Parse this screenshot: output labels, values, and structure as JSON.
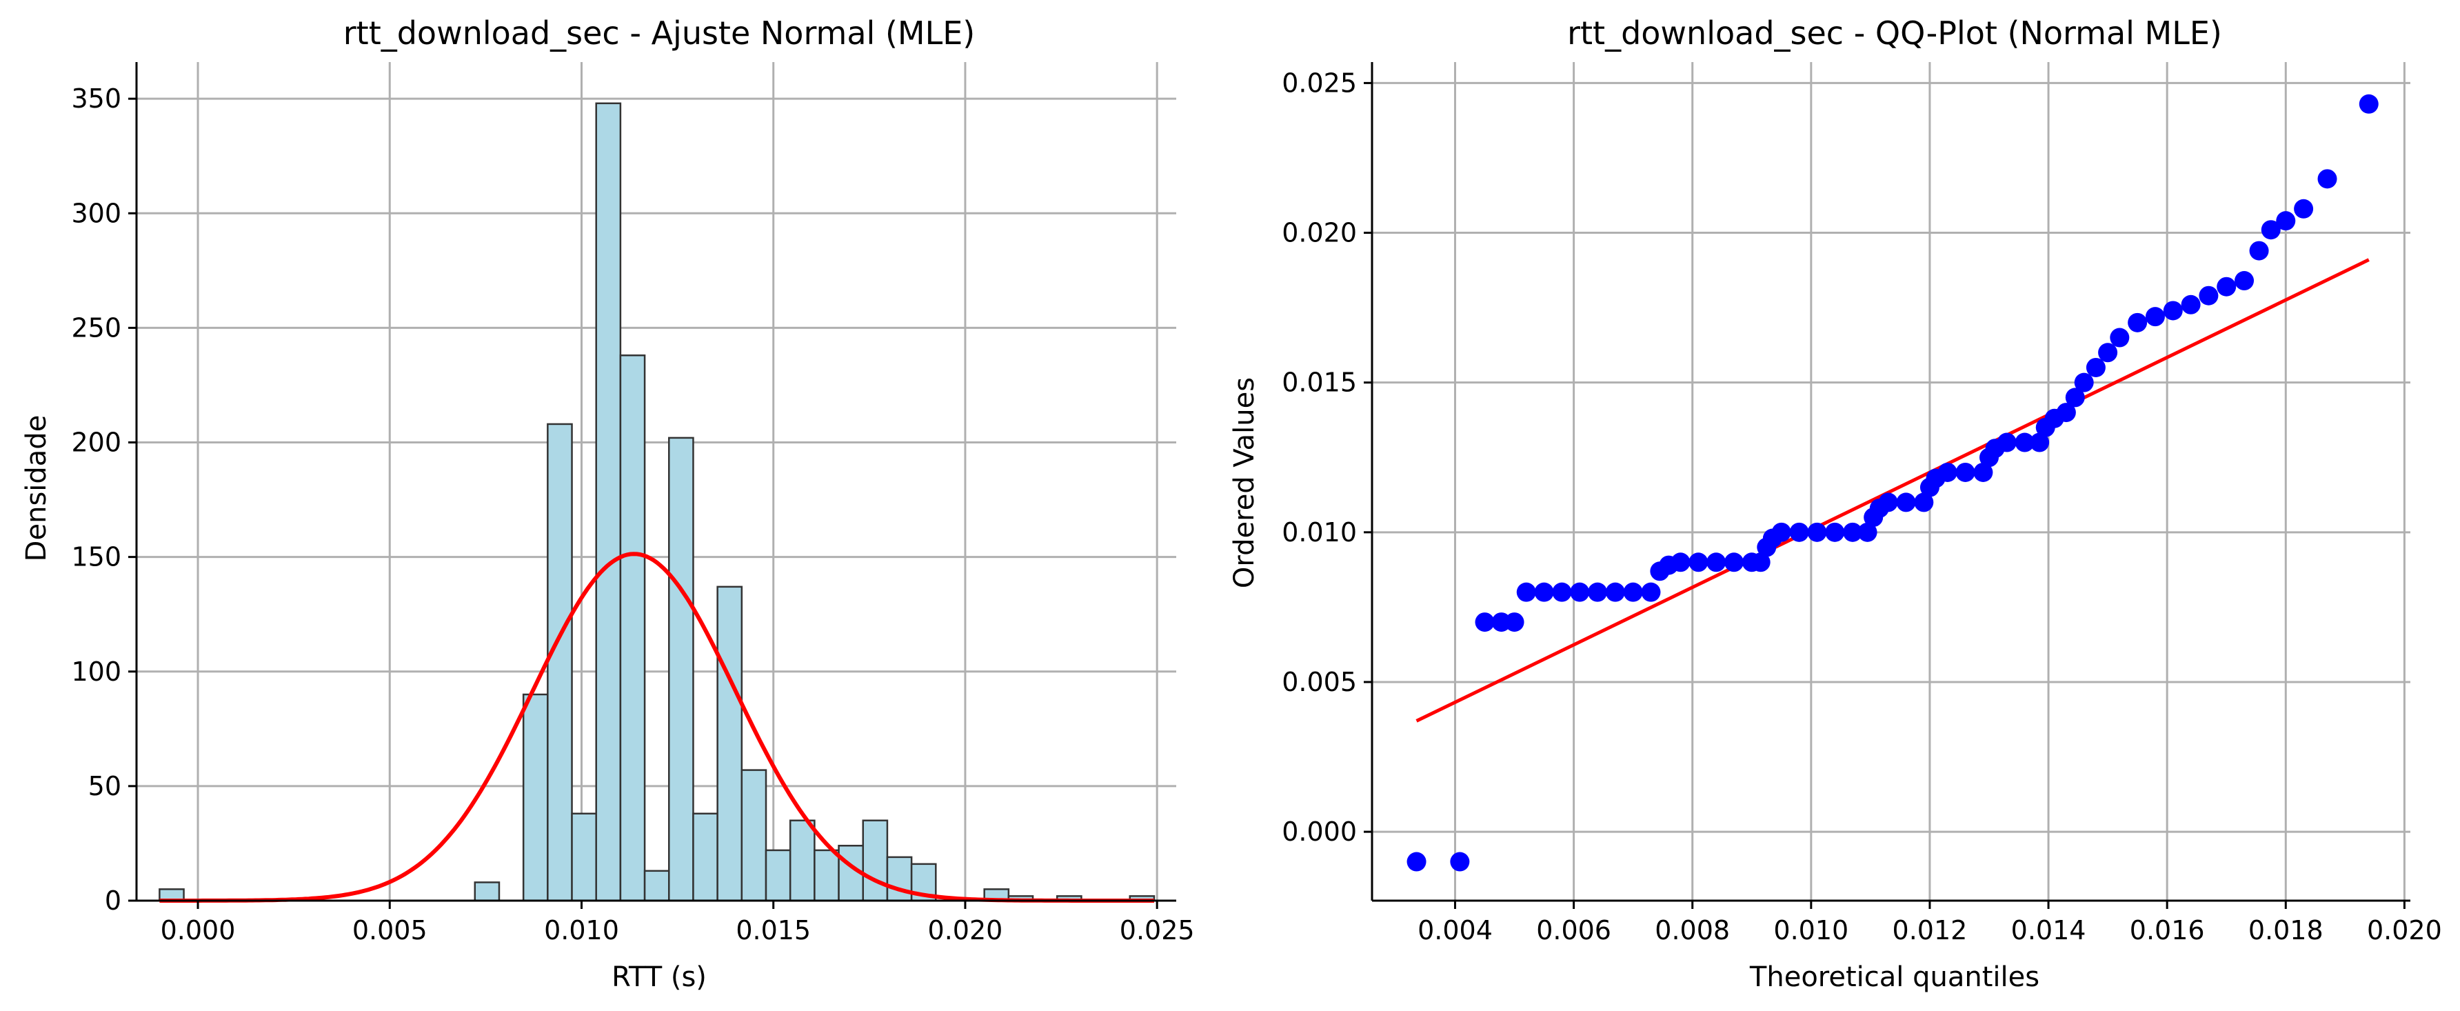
{
  "chart_data": [
    {
      "type": "bar",
      "subtype": "histogram_with_fit",
      "title": "rtt_download_sec - Ajuste Normal (MLE)",
      "xlabel": "RTT (s)",
      "ylabel": "Densidade",
      "xlim": [
        -0.0016,
        0.0255
      ],
      "ylim": [
        0,
        366
      ],
      "xticks": [
        0.0,
        0.005,
        0.01,
        0.015,
        0.02,
        0.025
      ],
      "xtick_labels": [
        "0.000",
        "0.005",
        "0.010",
        "0.015",
        "0.020",
        "0.025"
      ],
      "yticks": [
        0,
        50,
        100,
        150,
        200,
        250,
        300,
        350
      ],
      "ytick_labels": [
        "0",
        "50",
        "100",
        "150",
        "200",
        "250",
        "300",
        "350"
      ],
      "grid": true,
      "bar_color": "#add8e6",
      "bar_edge_color": "#333333",
      "fit_color": "#ff0000",
      "bin_start": -0.001,
      "bin_width": 0.0006323,
      "counts": [
        5,
        0,
        0,
        0,
        0,
        0,
        0,
        0,
        0,
        0,
        0,
        0,
        0,
        8,
        0,
        90,
        208,
        38,
        348,
        238,
        13,
        202,
        38,
        137,
        57,
        22,
        35,
        22,
        24,
        35,
        19,
        16,
        0,
        0,
        5,
        2,
        0,
        2,
        0,
        0,
        2
      ],
      "fit": {
        "mean": 0.01137,
        "std": 0.002636
      }
    },
    {
      "type": "scatter",
      "subtype": "qq_plot",
      "title": "rtt_download_sec - QQ-Plot (Normal MLE)",
      "xlabel": "Theoretical quantiles",
      "ylabel": "Ordered Values",
      "xlim": [
        0.0026,
        0.0201
      ],
      "ylim": [
        -0.0023,
        0.0257
      ],
      "xticks": [
        0.004,
        0.006,
        0.008,
        0.01,
        0.012,
        0.014,
        0.016,
        0.018,
        0.02
      ],
      "xtick_labels": [
        "0.004",
        "0.006",
        "0.008",
        "0.010",
        "0.012",
        "0.014",
        "0.016",
        "0.018",
        "0.020"
      ],
      "yticks": [
        0.0,
        0.005,
        0.01,
        0.015,
        0.02,
        0.025
      ],
      "ytick_labels": [
        "0.000",
        "0.005",
        "0.010",
        "0.015",
        "0.020",
        "0.025"
      ],
      "grid": true,
      "point_color": "#0000ff",
      "line_color": "#ff0000",
      "fit_line": {
        "x": [
          0.00335,
          0.0194
        ],
        "y": [
          0.0037,
          0.0191
        ]
      },
      "points": [
        [
          0.00335,
          -0.001
        ],
        [
          0.00408,
          -0.001
        ],
        [
          0.0045,
          0.007
        ],
        [
          0.00478,
          0.007
        ],
        [
          0.005,
          0.007
        ],
        [
          0.0052,
          0.008
        ],
        [
          0.0055,
          0.008
        ],
        [
          0.0058,
          0.008
        ],
        [
          0.0061,
          0.008
        ],
        [
          0.0064,
          0.008
        ],
        [
          0.0067,
          0.008
        ],
        [
          0.007,
          0.008
        ],
        [
          0.0073,
          0.008
        ],
        [
          0.00745,
          0.0087
        ],
        [
          0.0076,
          0.0089
        ],
        [
          0.0078,
          0.009
        ],
        [
          0.0081,
          0.009
        ],
        [
          0.0084,
          0.009
        ],
        [
          0.0087,
          0.009
        ],
        [
          0.009,
          0.009
        ],
        [
          0.00915,
          0.009
        ],
        [
          0.00925,
          0.0095
        ],
        [
          0.00935,
          0.0098
        ],
        [
          0.0095,
          0.01
        ],
        [
          0.0098,
          0.01
        ],
        [
          0.0101,
          0.01
        ],
        [
          0.0104,
          0.01
        ],
        [
          0.0107,
          0.01
        ],
        [
          0.01095,
          0.01
        ],
        [
          0.01105,
          0.0105
        ],
        [
          0.01115,
          0.0108
        ],
        [
          0.0113,
          0.011
        ],
        [
          0.0116,
          0.011
        ],
        [
          0.0119,
          0.011
        ],
        [
          0.012,
          0.0115
        ],
        [
          0.0121,
          0.0118
        ],
        [
          0.0123,
          0.012
        ],
        [
          0.0126,
          0.012
        ],
        [
          0.0129,
          0.012
        ],
        [
          0.013,
          0.0125
        ],
        [
          0.0131,
          0.0128
        ],
        [
          0.0133,
          0.013
        ],
        [
          0.0136,
          0.013
        ],
        [
          0.01385,
          0.013
        ],
        [
          0.01395,
          0.0135
        ],
        [
          0.0141,
          0.0138
        ],
        [
          0.0143,
          0.014
        ],
        [
          0.01445,
          0.0145
        ],
        [
          0.0146,
          0.015
        ],
        [
          0.0148,
          0.0155
        ],
        [
          0.015,
          0.016
        ],
        [
          0.0152,
          0.0165
        ],
        [
          0.0155,
          0.017
        ],
        [
          0.0158,
          0.0172
        ],
        [
          0.0161,
          0.0174
        ],
        [
          0.0164,
          0.0176
        ],
        [
          0.0167,
          0.0179
        ],
        [
          0.017,
          0.0182
        ],
        [
          0.0173,
          0.0184
        ],
        [
          0.01755,
          0.0194
        ],
        [
          0.01775,
          0.0201
        ],
        [
          0.018,
          0.0204
        ],
        [
          0.0183,
          0.0208
        ],
        [
          0.0187,
          0.0218
        ],
        [
          0.0194,
          0.0243
        ]
      ]
    }
  ]
}
